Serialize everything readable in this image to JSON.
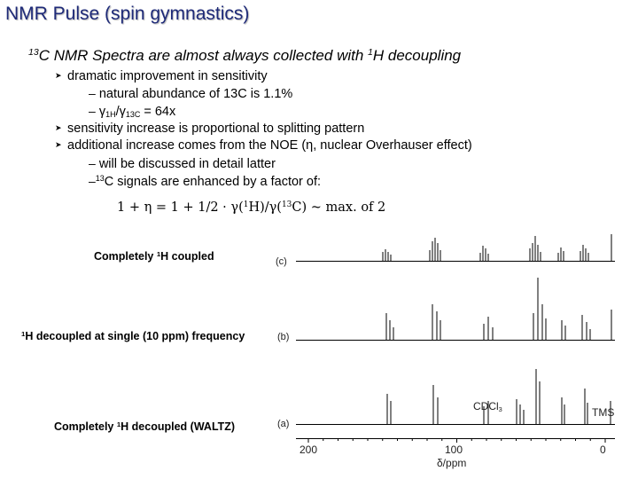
{
  "title": "NMR Pulse (spin gymnastics)",
  "heading": {
    "nucleus_sup": "13",
    "nucleus": "C",
    "text": " NMR Spectra are almost always collected with ",
    "h_sup": "1",
    "h_tail": "H decoupling"
  },
  "bullets": {
    "b1": "dramatic improvement in sensitivity",
    "s1": "natural abundance of 13C is 1.1%",
    "s2_g1": "γ",
    "s2_sub1": "1H",
    "s2_slash": "/",
    "s2_g2": "γ",
    "s2_sub2": "13C",
    "s2_tail": " = 64x",
    "b2": "sensitivity increase is proportional to splitting pattern",
    "b3": "additional increase comes from the NOE (η, nuclear Overhauser effect)",
    "s3": "will be discussed in detail latter",
    "s4_sup": "13",
    "s4_tail": "C signals are enhanced by a factor of:"
  },
  "equation": {
    "lhs": "1 + η = 1 + 1/2 · γ(",
    "sup1": "1",
    "mid": "H)/γ(",
    "sup2": "13",
    "tail": "C) ~ max. of 2"
  },
  "spectra": {
    "label_c": {
      "sup": "1",
      "pre": "Completely ",
      "post": "H coupled"
    },
    "label_b": {
      "sup": "1",
      "post": "H decoupled at single (10 ppm) frequency"
    },
    "label_a": {
      "sup": "1",
      "pre": "Completely ",
      "post": "H decoupled (WALTZ)"
    },
    "trace_c": "(c)",
    "trace_b": "(b)",
    "trace_a": "(a)",
    "cdcl3": "CDCl",
    "cdcl3_sub": "3",
    "tms": "TMS",
    "ticks": [
      "200",
      "100",
      "0"
    ],
    "xlabel": "δ/ppm"
  }
}
